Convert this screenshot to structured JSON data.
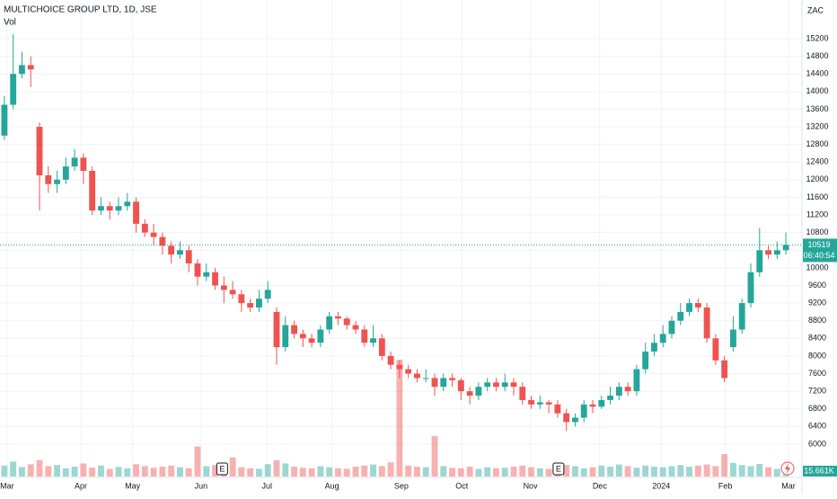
{
  "chart_data": {
    "type": "candlestick",
    "title": "MULTICHOICE GROUP LTD, 1D, JSE",
    "volume_title": "Vol",
    "currency": "ZAC",
    "countdown": "06:40:54",
    "volume_last_label": "15.661K",
    "up_color": "#26a69a",
    "down_color": "#ef5350",
    "xlim": [
      0,
      90
    ],
    "xticks": [
      {
        "value": 0.8,
        "label": "Mar"
      },
      {
        "value": 9.2,
        "label": "Apr"
      },
      {
        "value": 15.1,
        "label": "May"
      },
      {
        "value": 22.9,
        "label": "Jun"
      },
      {
        "value": 30.4,
        "label": "Jul"
      },
      {
        "value": 37.8,
        "label": "Aug"
      },
      {
        "value": 45.7,
        "label": "Sep"
      },
      {
        "value": 52.6,
        "label": "Oct"
      },
      {
        "value": 60.4,
        "label": "Nov"
      },
      {
        "value": 68.3,
        "label": "Dec"
      },
      {
        "value": 75.3,
        "label": "2024"
      },
      {
        "value": 82.6,
        "label": "Feb"
      },
      {
        "value": 89.8,
        "label": "Mar"
      }
    ],
    "ylim": [
      5265,
      16077
    ],
    "yticks": [
      6000,
      6400,
      6800,
      7200,
      7600,
      8000,
      8400,
      8800,
      9200,
      9600,
      10000,
      10400,
      10800,
      11200,
      11600,
      12000,
      12400,
      12800,
      13200,
      13600,
      14000,
      14400,
      14800,
      15200
    ],
    "volume_ylim": [
      0,
      560
    ],
    "open": [
      13000,
      13700,
      14400,
      14600,
      13200,
      12100,
      11900,
      12000,
      12300,
      12500,
      12200,
      11300,
      11400,
      11300,
      11400,
      11500,
      11000,
      10800,
      10700,
      10500,
      10300,
      10400,
      10100,
      9800,
      9900,
      9600,
      9500,
      9400,
      9200,
      9100,
      9300,
      9000,
      8200,
      8700,
      8500,
      8400,
      8300,
      8600,
      8900,
      8850,
      8700,
      8600,
      8300,
      8400,
      8000,
      7800,
      7700,
      7600,
      7500,
      7500,
      7300,
      7500,
      7450,
      7200,
      7100,
      7300,
      7400,
      7300,
      7400,
      7300,
      7000,
      6900,
      6950,
      6900,
      6700,
      6500,
      6600,
      6900,
      6850,
      7000,
      7100,
      7300,
      7200,
      7700,
      8100,
      8300,
      8500,
      8800,
      9000,
      9200,
      9100,
      8400,
      7900,
      8200,
      8600,
      9200,
      9900,
      10400,
      10300,
      10400
    ],
    "high": [
      13900,
      15300,
      14900,
      14800,
      13300,
      12300,
      12200,
      12500,
      12700,
      12600,
      12300,
      11600,
      11500,
      11600,
      11700,
      11600,
      11100,
      11000,
      10800,
      10600,
      10600,
      10500,
      10200,
      10100,
      10000,
      9800,
      9700,
      9500,
      9300,
      9500,
      9700,
      9100,
      8900,
      8800,
      8600,
      8500,
      8700,
      9000,
      9000,
      8900,
      8800,
      8700,
      8700,
      8500,
      8100,
      7900,
      7800,
      7700,
      7700,
      7600,
      7600,
      7600,
      7500,
      7300,
      7400,
      7500,
      7500,
      7600,
      7500,
      7400,
      7100,
      7100,
      7000,
      7000,
      6800,
      6700,
      7000,
      7000,
      7100,
      7300,
      7400,
      7400,
      7800,
      8300,
      8500,
      8700,
      8900,
      9200,
      9300,
      9300,
      9200,
      8500,
      8000,
      8900,
      9300,
      10100,
      10900,
      10500,
      10600,
      10800
    ],
    "low": [
      12900,
      13600,
      14300,
      14100,
      11300,
      11700,
      11700,
      11900,
      12200,
      11900,
      11200,
      11200,
      11100,
      11200,
      11300,
      10800,
      10700,
      10500,
      10300,
      10100,
      10200,
      9900,
      9600,
      9700,
      9500,
      9200,
      9300,
      9000,
      9000,
      9000,
      9200,
      7800,
      8100,
      8400,
      8200,
      8200,
      8200,
      8500,
      8700,
      8600,
      8500,
      8200,
      8200,
      7900,
      7700,
      7500,
      7500,
      7400,
      7400,
      7100,
      7200,
      7300,
      7000,
      6900,
      7000,
      7200,
      7200,
      7200,
      7100,
      6900,
      6800,
      6800,
      6700,
      6600,
      6300,
      6400,
      6500,
      6700,
      6800,
      6900,
      7000,
      7100,
      7100,
      7600,
      8000,
      8200,
      8400,
      8700,
      8900,
      9000,
      8300,
      7800,
      7400,
      8100,
      8500,
      9100,
      9800,
      10200,
      10200,
      10300
    ],
    "close": [
      13700,
      14400,
      14600,
      14500,
      12100,
      11900,
      12000,
      12300,
      12500,
      12200,
      11300,
      11400,
      11300,
      11400,
      11500,
      11000,
      10800,
      10700,
      10500,
      10300,
      10400,
      10100,
      9800,
      9900,
      9600,
      9500,
      9400,
      9200,
      9100,
      9300,
      9500,
      8200,
      8700,
      8500,
      8400,
      8300,
      8600,
      8900,
      8850,
      8700,
      8600,
      8300,
      8400,
      8000,
      7800,
      7700,
      7600,
      7500,
      7500,
      7300,
      7500,
      7450,
      7200,
      7100,
      7300,
      7400,
      7300,
      7400,
      7300,
      7000,
      6900,
      6950,
      6900,
      6700,
      6500,
      6600,
      6900,
      6850,
      7000,
      7100,
      7300,
      7200,
      7700,
      8100,
      8300,
      8500,
      8800,
      9000,
      9200,
      9100,
      8400,
      7900,
      7500,
      8600,
      9200,
      9900,
      10400,
      10300,
      10400,
      10519
    ],
    "volume": [
      40,
      55,
      35,
      45,
      60,
      38,
      42,
      30,
      36,
      48,
      33,
      40,
      28,
      35,
      30,
      45,
      38,
      32,
      36,
      40,
      34,
      30,
      110,
      38,
      42,
      36,
      70,
      34,
      30,
      28,
      45,
      60,
      48,
      36,
      32,
      30,
      38,
      34,
      30,
      28,
      36,
      40,
      44,
      38,
      52,
      428,
      40,
      36,
      34,
      148,
      38,
      32,
      30,
      36,
      28,
      34,
      30,
      32,
      36,
      40,
      34,
      30,
      28,
      36,
      42,
      38,
      30,
      34,
      40,
      36,
      44,
      38,
      32,
      40,
      36,
      34,
      38,
      42,
      36,
      40,
      44,
      38,
      82,
      50,
      42,
      38,
      46,
      34,
      28,
      15.661
    ],
    "earnings": [
      {
        "x": 25.3,
        "label": "E"
      },
      {
        "x": 63.6,
        "label": "E"
      }
    ]
  }
}
